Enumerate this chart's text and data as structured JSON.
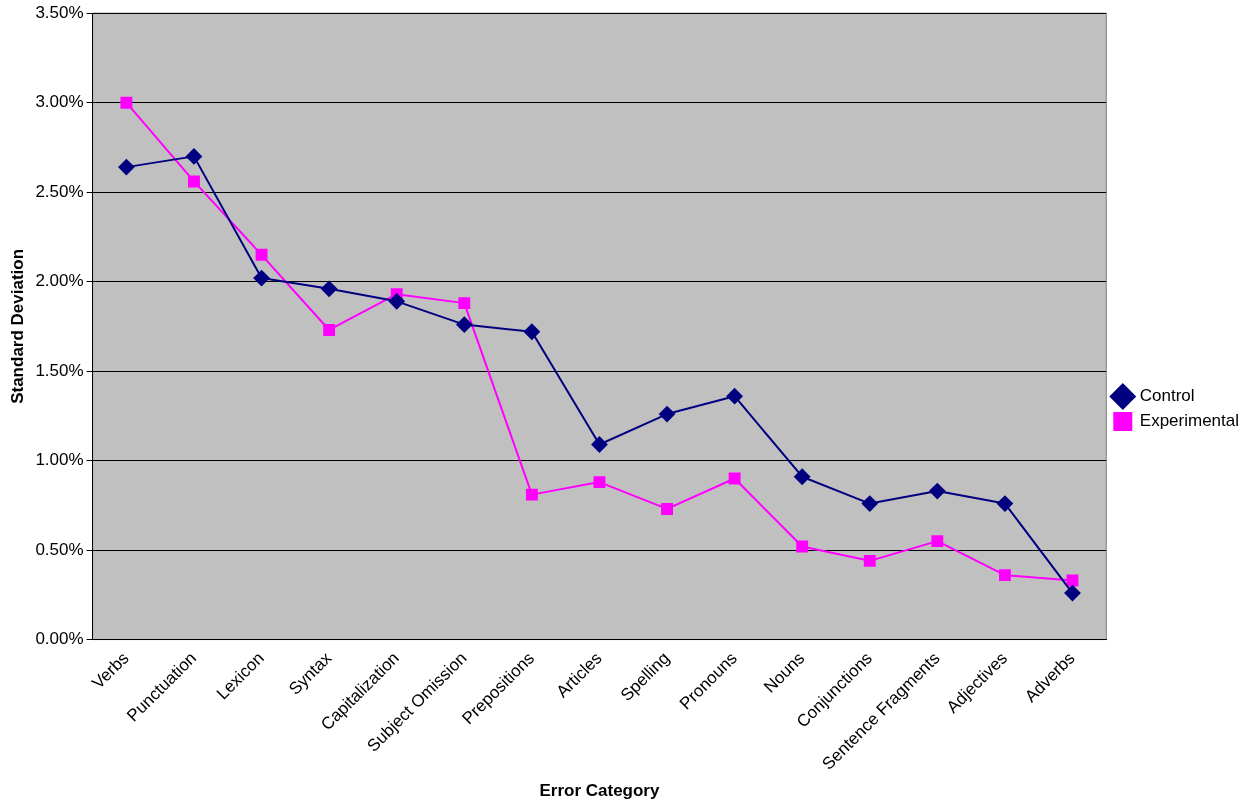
{
  "chart_data": {
    "type": "line",
    "xlabel": "Error Category",
    "ylabel": "Standard Deviation",
    "categories": [
      "Verbs",
      "Punctuation",
      "Lexicon",
      "Syntax",
      "Capitalization",
      "Subject Omission",
      "Prepositions",
      "Articles",
      "Spelling",
      "Pronouns",
      "Nouns",
      "Conjunctions",
      "Sentence Fragments",
      "Adjectives",
      "Adverbs"
    ],
    "series": [
      {
        "name": "Control",
        "color": "#000080",
        "marker": "diamond",
        "values": [
          2.64,
          2.7,
          2.02,
          1.96,
          1.89,
          1.76,
          1.72,
          1.09,
          1.26,
          1.36,
          0.91,
          0.76,
          0.83,
          0.76,
          0.26
        ]
      },
      {
        "name": "Experimental",
        "color": "#ff00ff",
        "marker": "square",
        "values": [
          3.0,
          2.56,
          2.15,
          1.73,
          1.93,
          1.88,
          0.81,
          0.88,
          0.73,
          0.9,
          0.52,
          0.44,
          0.55,
          0.36,
          0.33
        ]
      }
    ],
    "ylim": [
      0,
      3.5
    ],
    "yticks": [
      {
        "value": 0,
        "label": "0.00%"
      },
      {
        "value": 0.5,
        "label": "0.50%"
      },
      {
        "value": 1,
        "label": "1.00%"
      },
      {
        "value": 1.5,
        "label": "1.50%"
      },
      {
        "value": 2,
        "label": "2.00%"
      },
      {
        "value": 2.5,
        "label": "2.50%"
      },
      {
        "value": 3,
        "label": "3.00%"
      },
      {
        "value": 3.5,
        "label": "3.50%"
      }
    ],
    "grid": "y",
    "legend": "right",
    "line_style": "solid"
  }
}
